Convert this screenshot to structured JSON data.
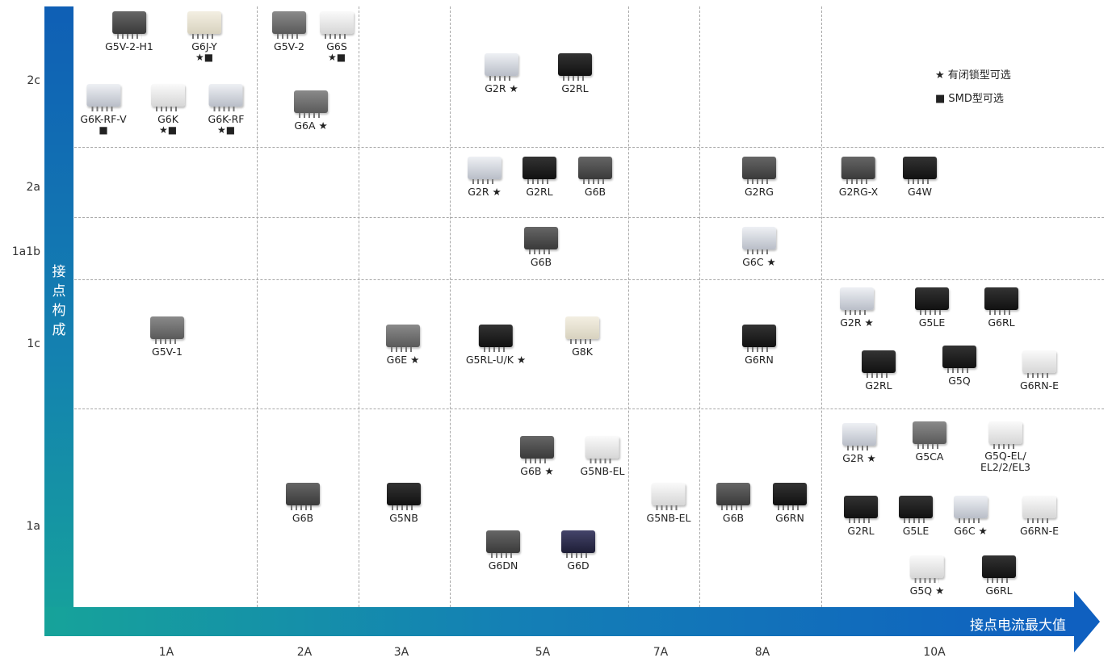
{
  "axes": {
    "y_label": "接点构成",
    "x_label": "接点电流最大值",
    "rows": [
      "2c",
      "2a",
      "1a1b",
      "1c",
      "1a"
    ],
    "columns": [
      "1A",
      "2A",
      "3A",
      "5A",
      "7A",
      "8A",
      "10A"
    ]
  },
  "legend": {
    "star": "★ 有闭锁型可选",
    "square": "■ SMD型可选"
  },
  "relays": [
    {
      "name": "G5V-2-H1",
      "sym": "",
      "kind": "dark"
    },
    {
      "name": "G6J-Y",
      "sym": "★■",
      "kind": "beige"
    },
    {
      "name": "G5V-2",
      "sym": "",
      "kind": "grey"
    },
    {
      "name": "G6S",
      "sym": "★■",
      "kind": "white"
    },
    {
      "name": "G6K-RF-V",
      "sym": "■",
      "kind": "clear"
    },
    {
      "name": "G6K",
      "sym": "★■",
      "kind": "white"
    },
    {
      "name": "G6K-RF",
      "sym": "★■",
      "kind": "clear"
    },
    {
      "name": "G6A ★",
      "sym": "",
      "kind": "grey"
    },
    {
      "name": "G2R ★",
      "sym": "",
      "kind": "clear"
    },
    {
      "name": "G2RL",
      "sym": "",
      "kind": "black"
    },
    {
      "name": "G2R ★",
      "sym": "",
      "kind": "clear"
    },
    {
      "name": "G2RL",
      "sym": "",
      "kind": "black"
    },
    {
      "name": "G6B",
      "sym": "",
      "kind": "dark"
    },
    {
      "name": "G2RG",
      "sym": "",
      "kind": "dark"
    },
    {
      "name": "G2RG-X",
      "sym": "",
      "kind": "dark"
    },
    {
      "name": "G4W",
      "sym": "",
      "kind": "black"
    },
    {
      "name": "G6B",
      "sym": "",
      "kind": "dark"
    },
    {
      "name": "G6C ★",
      "sym": "",
      "kind": "clear"
    },
    {
      "name": "G5V-1",
      "sym": "",
      "kind": "grey"
    },
    {
      "name": "G6E ★",
      "sym": "",
      "kind": "grey"
    },
    {
      "name": "G5RL-U/K ★",
      "sym": "",
      "kind": "black"
    },
    {
      "name": "G8K",
      "sym": "",
      "kind": "beige"
    },
    {
      "name": "G6RN",
      "sym": "",
      "kind": "black"
    },
    {
      "name": "G2R ★",
      "sym": "",
      "kind": "clear"
    },
    {
      "name": "G5LE",
      "sym": "",
      "kind": "black"
    },
    {
      "name": "G6RL",
      "sym": "",
      "kind": "black"
    },
    {
      "name": "G2RL",
      "sym": "",
      "kind": "black"
    },
    {
      "name": "G5Q",
      "sym": "",
      "kind": "black"
    },
    {
      "name": "G6RN-E",
      "sym": "",
      "kind": "white"
    },
    {
      "name": "G6B",
      "sym": "",
      "kind": "dark"
    },
    {
      "name": "G5NB",
      "sym": "",
      "kind": "black"
    },
    {
      "name": "G6B ★",
      "sym": "",
      "kind": "dark"
    },
    {
      "name": "G5NB-EL",
      "sym": "",
      "kind": "white"
    },
    {
      "name": "G6DN",
      "sym": "",
      "kind": "dark"
    },
    {
      "name": "G6D",
      "sym": "",
      "kind": "navy"
    },
    {
      "name": "G5NB-EL",
      "sym": "",
      "kind": "white"
    },
    {
      "name": "G6B",
      "sym": "",
      "kind": "dark"
    },
    {
      "name": "G6RN",
      "sym": "",
      "kind": "black"
    },
    {
      "name": "G2R ★",
      "sym": "",
      "kind": "clear"
    },
    {
      "name": "G5CA",
      "sym": "",
      "kind": "grey"
    },
    {
      "name": "G5Q-EL/ EL2/2/EL3",
      "sym": "",
      "kind": "white"
    },
    {
      "name": "G2RL",
      "sym": "",
      "kind": "black"
    },
    {
      "name": "G5LE",
      "sym": "",
      "kind": "black"
    },
    {
      "name": "G6C ★",
      "sym": "",
      "kind": "clear"
    },
    {
      "name": "G6RN-E",
      "sym": "",
      "kind": "white"
    },
    {
      "name": "G5Q ★",
      "sym": "",
      "kind": "white"
    },
    {
      "name": "G6RL",
      "sym": "",
      "kind": "black"
    }
  ]
}
